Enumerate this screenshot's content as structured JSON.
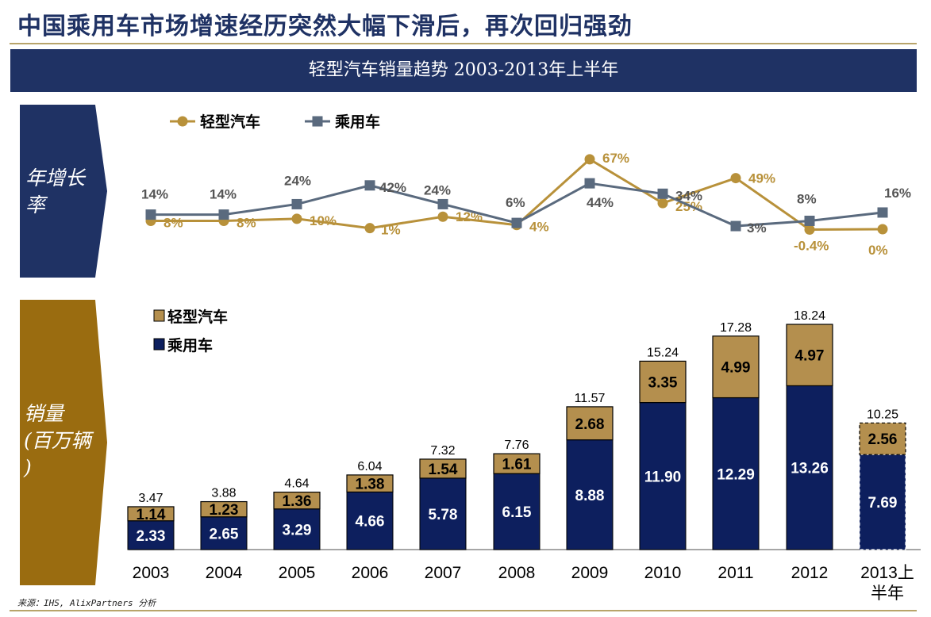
{
  "page": {
    "title": "中国乘用车市场增速经历突然大幅下滑后，再次回归强劲",
    "banner": "轻型汽车销量趋势 2003-2013年上半年",
    "source": "来源：IHS, AlixPartners 分析"
  },
  "side_labels": {
    "growth": "年增长率",
    "sales_lines": [
      "销量",
      "(百万辆",
      ")"
    ]
  },
  "colors": {
    "navy": "#1f3264",
    "gold": "#b8913a",
    "gray_line": "#5a6a7e",
    "bar_dark": "#0d1f5e",
    "bar_gold": "#b48f4e",
    "side_gold": "#9a6c10"
  },
  "chart_data": [
    {
      "type": "line",
      "x": [
        "2003",
        "2004",
        "2005",
        "2006",
        "2007",
        "2008",
        "2009",
        "2010",
        "2011",
        "2012",
        "2013上半年"
      ],
      "series": [
        {
          "name": "轻型汽车",
          "values": [
            8,
            8,
            10,
            1,
            12,
            4,
            67,
            25,
            49,
            -0.4,
            0
          ],
          "labels": [
            "8%",
            "8%",
            "10%",
            "1%",
            "12%",
            "4%",
            "67%",
            "25%",
            "49%",
            "-0.4%",
            "0%"
          ]
        },
        {
          "name": "乘用车",
          "values": [
            14,
            14,
            24,
            42,
            24,
            6,
            44,
            34,
            3,
            8,
            16
          ],
          "labels": [
            "14%",
            "14%",
            "24%",
            "42%",
            "24%",
            "6%",
            "44%",
            "34%",
            "3%",
            "8%",
            "16%"
          ]
        }
      ],
      "unit": "%",
      "legend_position": "top-left"
    },
    {
      "type": "bar",
      "stacked": true,
      "categories": [
        "2003",
        "2004",
        "2005",
        "2006",
        "2007",
        "2008",
        "2009",
        "2010",
        "2011",
        "2012",
        "2013上半年"
      ],
      "series": [
        {
          "name": "乘用车",
          "values": [
            2.33,
            2.65,
            3.29,
            4.66,
            5.78,
            6.15,
            8.88,
            11.9,
            12.29,
            13.26,
            7.69
          ],
          "labels": [
            "2.33",
            "2.65",
            "3.29",
            "4.66",
            "5.78",
            "6.15",
            "8.88",
            "11.90",
            "12.29",
            "13.26",
            "7.69"
          ]
        },
        {
          "name": "轻型汽车",
          "values": [
            1.14,
            1.23,
            1.36,
            1.38,
            1.54,
            1.61,
            2.68,
            3.35,
            4.99,
            4.97,
            2.56
          ],
          "labels": [
            "1.14",
            "1.23",
            "1.36",
            "1.38",
            "1.54",
            "1.61",
            "2.68",
            "3.35",
            "4.99",
            "4.97",
            "2.56"
          ]
        }
      ],
      "totals": [
        3.47,
        3.88,
        4.64,
        6.04,
        7.32,
        7.76,
        11.57,
        15.24,
        17.28,
        18.24,
        10.25
      ],
      "total_labels": [
        "3.47",
        "3.88",
        "4.64",
        "6.04",
        "7.32",
        "7.76",
        "11.57",
        "15.24",
        "17.28",
        "18.24",
        "10.25"
      ],
      "category_labels": [
        "2003",
        "2004",
        "2005",
        "2006",
        "2007",
        "2008",
        "2009",
        "2010",
        "2011",
        "2012",
        "2013上\n半年"
      ],
      "legend_position": "top-left",
      "last_bar_style": "dashed-outline"
    }
  ]
}
